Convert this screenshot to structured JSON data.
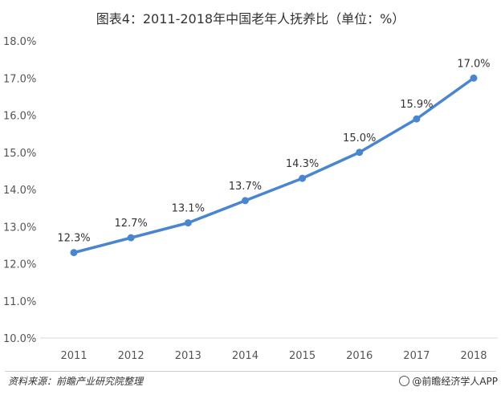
{
  "title": "图表4：2011-2018年中国老年人抚养比（单位：%）",
  "footer": {
    "source": "资料来源：前瞻产业研究院整理",
    "credit": "@前瞻经济学人APP"
  },
  "chart_data": {
    "type": "line",
    "title": "图表4：2011-2018年中国老年人抚养比（单位：%）",
    "x": [
      "2011",
      "2012",
      "2013",
      "2014",
      "2015",
      "2016",
      "2017",
      "2018"
    ],
    "values": [
      12.3,
      12.7,
      13.1,
      13.7,
      14.3,
      15.0,
      15.9,
      17.0
    ],
    "data_labels": [
      "12.3%",
      "12.7%",
      "13.1%",
      "13.7%",
      "14.3%",
      "15.0%",
      "15.9%",
      "17.0%"
    ],
    "yticks": [
      "10.0%",
      "11.0%",
      "12.0%",
      "13.0%",
      "14.0%",
      "15.0%",
      "16.0%",
      "17.0%",
      "18.0%"
    ],
    "ylim": [
      10,
      18
    ],
    "ystep": 1,
    "grid": false,
    "line_color": "#4a86cf",
    "marker": "circle",
    "legend": "none"
  }
}
